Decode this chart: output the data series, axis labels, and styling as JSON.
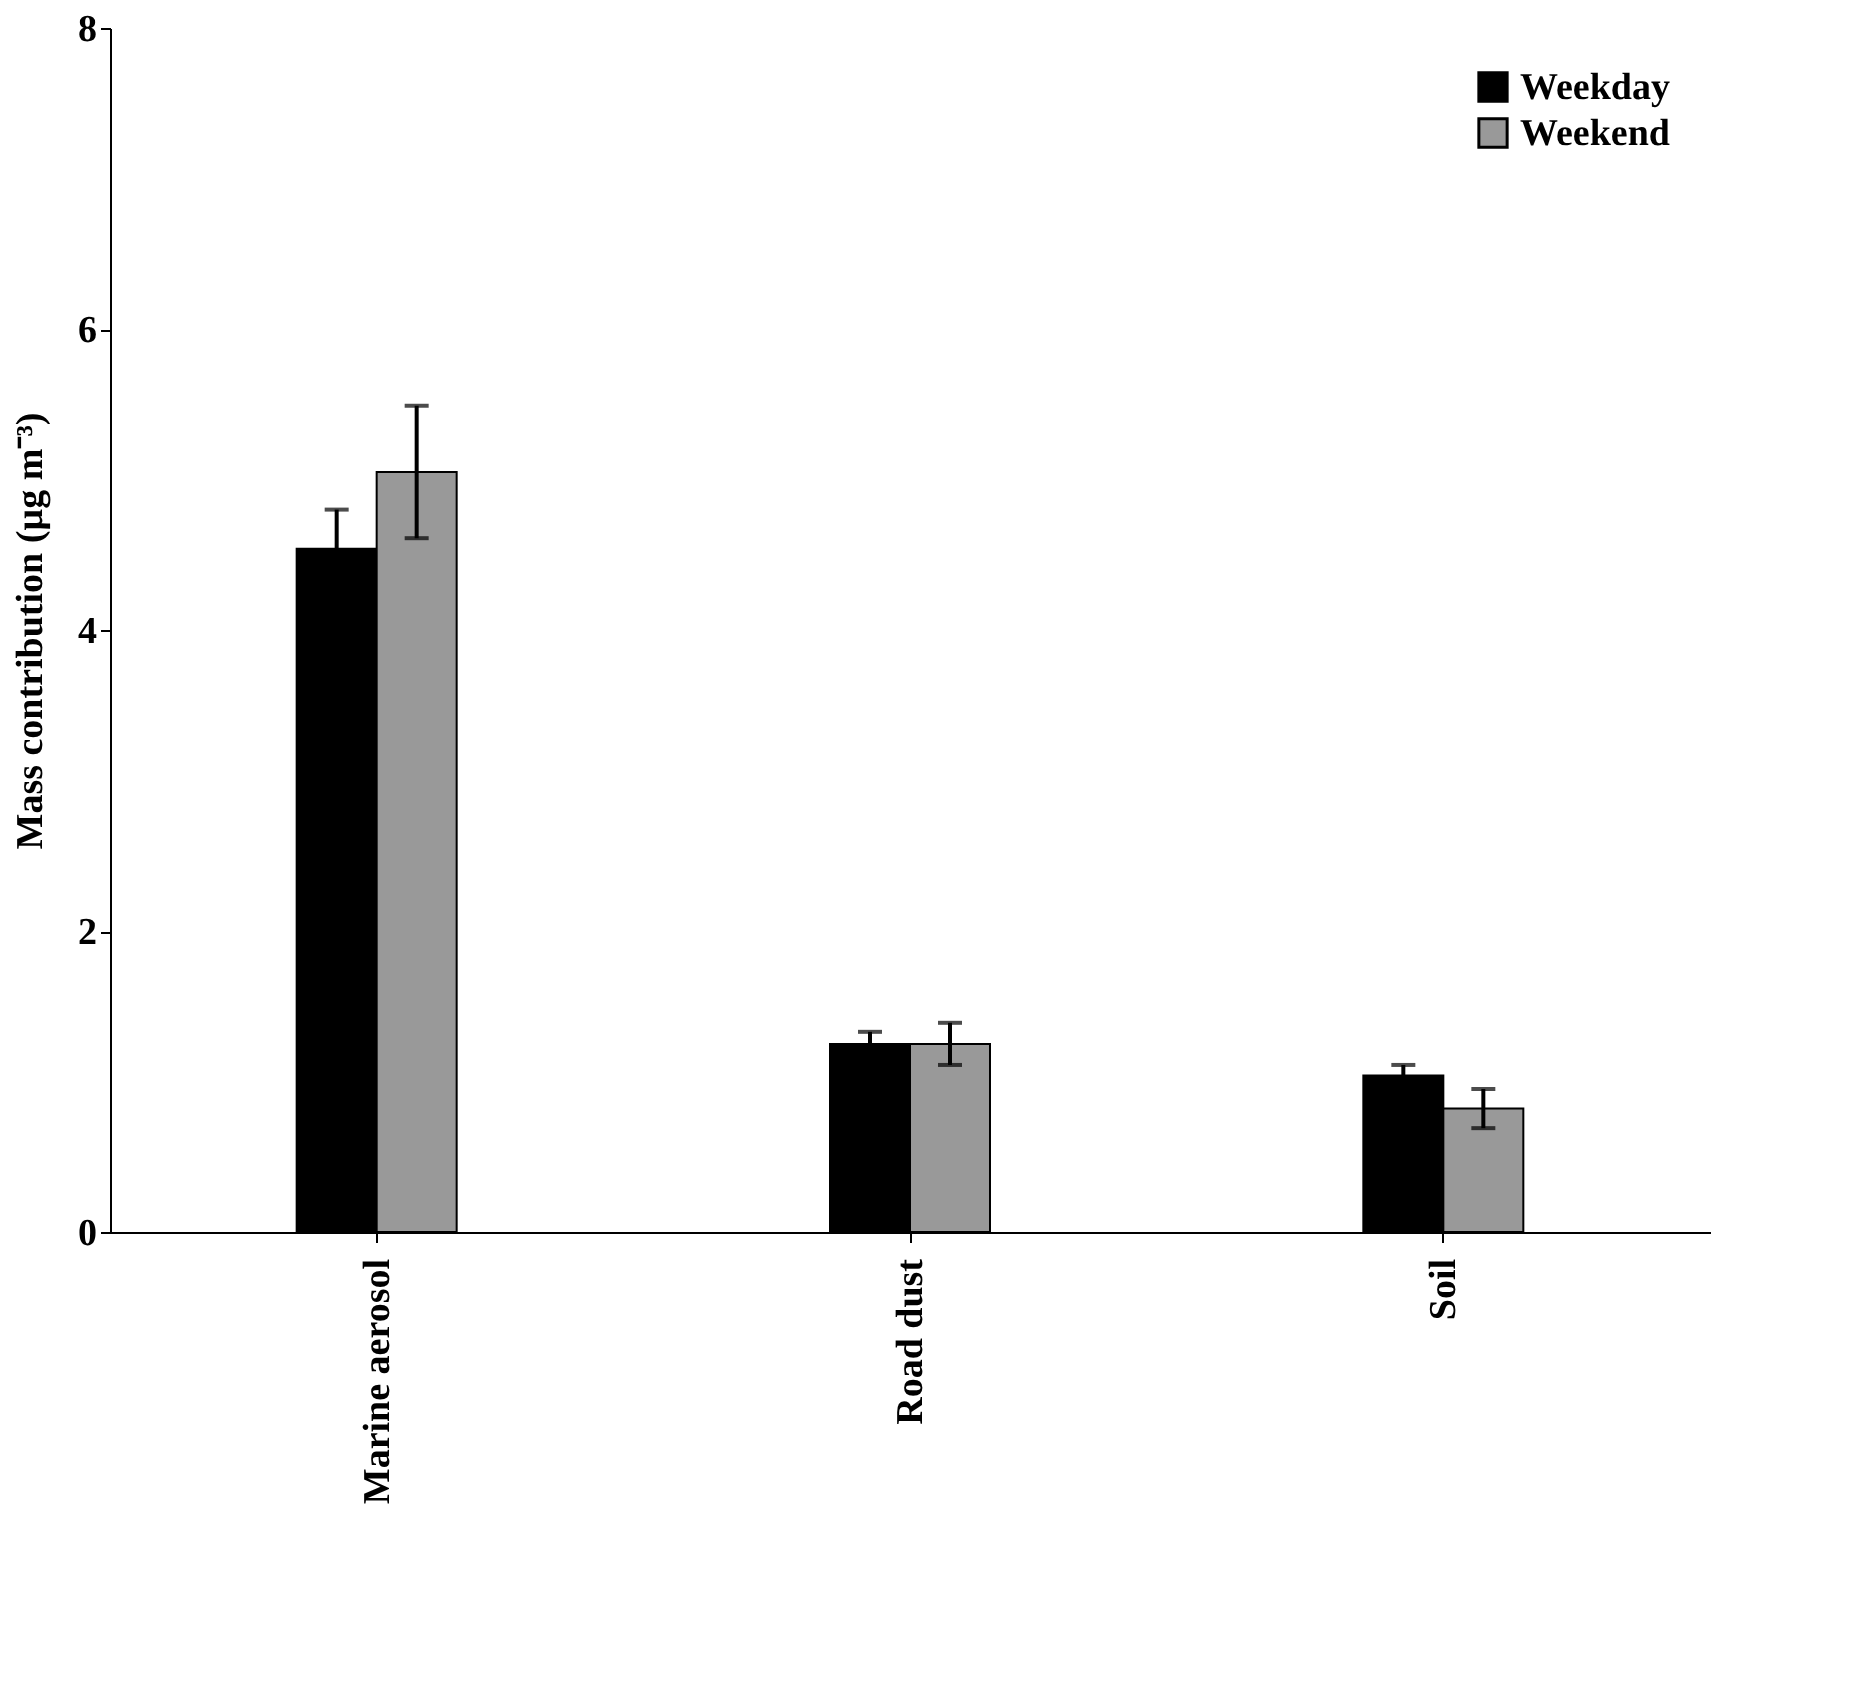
{
  "chart_data": {
    "type": "bar",
    "ylabel": "Mass contribution (µg m⁻³)",
    "categories": [
      "Marine aerosol",
      "Road dust",
      "Soil"
    ],
    "series": [
      {
        "name": "Weekday",
        "color": "#000000",
        "values": [
          4.54,
          1.25,
          1.04
        ],
        "errors": [
          0.26,
          0.08,
          0.07
        ]
      },
      {
        "name": "Weekend",
        "color": "#999999",
        "values": [
          5.05,
          1.25,
          0.82
        ],
        "errors": [
          0.44,
          0.14,
          0.13
        ]
      }
    ],
    "ylim": [
      0,
      8
    ],
    "yticks": [
      0,
      2,
      4,
      6,
      8
    ],
    "grid": false,
    "legend": "top right"
  }
}
